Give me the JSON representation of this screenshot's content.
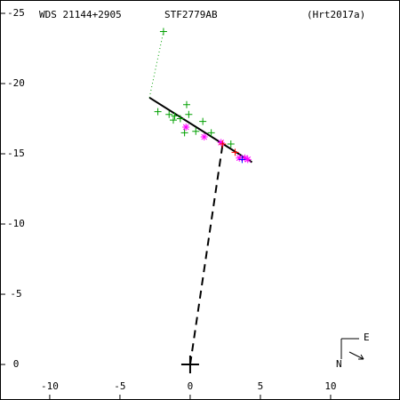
{
  "chart_data": {
    "type": "scatter",
    "title": "WDS 21144+2905",
    "subtitle": "STF2779AB",
    "reference": "(Hrt2017a)",
    "xlim": [
      -13.54,
      14.94
    ],
    "ylim": [
      2.53,
      -25.95
    ],
    "xticks": [
      -10,
      -5,
      0,
      5,
      10
    ],
    "yticks": [
      0,
      -5,
      -10,
      -15,
      -20,
      -25
    ],
    "series": [
      {
        "marker": "dotted",
        "color": "#00a000",
        "x": [
          -2.9,
          -1.9
        ],
        "values": [
          -19.0,
          -23.7
        ]
      },
      {
        "marker": "dashed",
        "color": "#000000",
        "x": [
          0,
          2.3
        ],
        "values": [
          0,
          -15.6
        ]
      },
      {
        "marker": "line",
        "color": "#000000",
        "x": [
          -2.9,
          4.4
        ],
        "values": [
          -19.0,
          -14.4
        ]
      },
      {
        "marker": "plus",
        "color": "#00a000",
        "x": [
          -1.9,
          -0.25,
          -2.3,
          -1.5,
          -1.1,
          -0.7,
          -0.1,
          0.9,
          -0.4,
          0.4,
          1.5,
          2.9,
          -1.2
        ],
        "values": [
          -23.7,
          -18.5,
          -18.0,
          -17.8,
          -17.7,
          -17.5,
          -17.8,
          -17.3,
          -16.5,
          -16.6,
          -16.5,
          -15.7,
          -17.4
        ]
      },
      {
        "marker": "star",
        "color": "#ff00ff",
        "x": [
          -0.3,
          1.0,
          2.2,
          3.5,
          3.9,
          4.1
        ],
        "values": [
          -16.9,
          -16.2,
          -15.8,
          -14.7,
          -14.7,
          -14.6
        ]
      },
      {
        "marker": "plus",
        "color": "#ff0000",
        "x": [
          3.2,
          2.3
        ],
        "values": [
          -15.1,
          -15.7
        ]
      },
      {
        "marker": "plus",
        "color": "#0000ff",
        "x": [
          3.7
        ],
        "values": [
          -14.6
        ]
      },
      {
        "marker": "origin",
        "color": "#000000",
        "x": [
          0
        ],
        "values": [
          0
        ]
      }
    ]
  },
  "compass": {
    "east": "E",
    "north": "N"
  }
}
